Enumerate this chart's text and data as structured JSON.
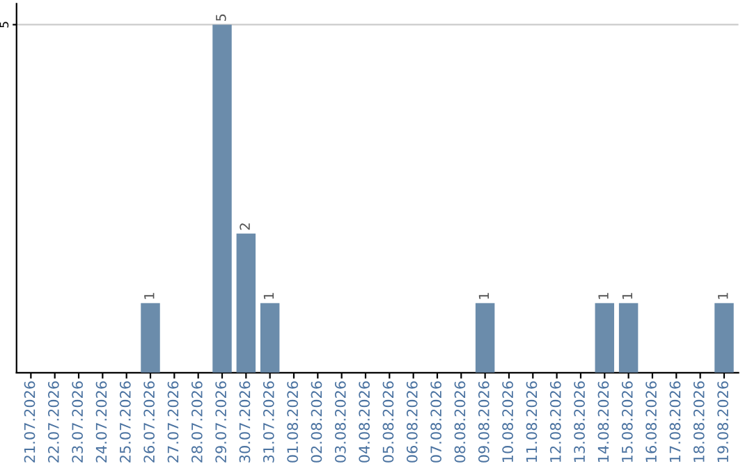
{
  "chart_data": {
    "type": "bar",
    "categories": [
      "21.07.2026",
      "22.07.2026",
      "23.07.2026",
      "24.07.2026",
      "25.07.2026",
      "26.07.2026",
      "27.07.2026",
      "28.07.2026",
      "29.07.2026",
      "30.07.2026",
      "31.07.2026",
      "01.08.2026",
      "02.08.2026",
      "03.08.2026",
      "04.08.2026",
      "05.08.2026",
      "06.08.2026",
      "07.08.2026",
      "08.08.2026",
      "09.08.2026",
      "10.08.2026",
      "11.08.2026",
      "12.08.2026",
      "13.08.2026",
      "14.08.2026",
      "15.08.2026",
      "16.08.2026",
      "17.08.2026",
      "18.08.2026",
      "19.08.2026"
    ],
    "values": [
      0,
      0,
      0,
      0,
      0,
      1,
      0,
      0,
      5,
      2,
      1,
      0,
      0,
      0,
      0,
      0,
      0,
      0,
      0,
      1,
      0,
      0,
      0,
      0,
      1,
      1,
      0,
      0,
      0,
      1
    ],
    "value_labels": [
      null,
      null,
      null,
      null,
      null,
      "1",
      null,
      null,
      "5",
      "2",
      "1",
      null,
      null,
      null,
      null,
      null,
      null,
      null,
      null,
      "1",
      null,
      null,
      null,
      null,
      "1",
      "1",
      null,
      null,
      null,
      "1"
    ],
    "color": "#6b8cab",
    "ylim": [
      0,
      5.3
    ],
    "yticks": [
      5
    ],
    "grid": "y"
  }
}
